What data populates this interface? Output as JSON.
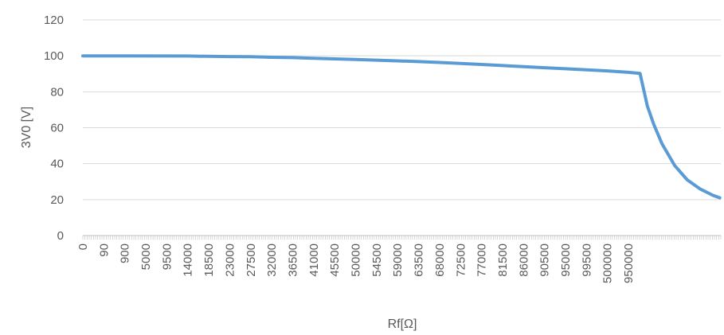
{
  "chart_data": {
    "type": "line",
    "xlabel": "Rf[Ω]",
    "ylabel": "3V0 [V]",
    "ylim": [
      0,
      120
    ],
    "yticks": [
      0,
      20,
      40,
      60,
      80,
      100,
      120
    ],
    "grid": true,
    "x_tick_labels": [
      "0",
      "90",
      "900",
      "5000",
      "9500",
      "14000",
      "18500",
      "23000",
      "27500",
      "32000",
      "36500",
      "41000",
      "45500",
      "50000",
      "54500",
      "59000",
      "63500",
      "68000",
      "72500",
      "77000",
      "81500",
      "86000",
      "90500",
      "95000",
      "99500",
      "500000",
      "950000"
    ],
    "colors": {
      "line": "#5B9BD5",
      "grid": "#D9D9D9",
      "axis": "#BFBFBF",
      "text": "#595959"
    },
    "series": [
      {
        "points": [
          [
            0,
            100.0
          ],
          [
            2,
            100.0
          ],
          [
            5,
            99.9
          ],
          [
            6,
            99.7
          ],
          [
            7,
            99.6
          ],
          [
            8,
            99.5
          ],
          [
            9,
            99.2
          ],
          [
            10,
            99.0
          ],
          [
            11,
            98.6
          ],
          [
            12,
            98.3
          ],
          [
            13,
            98.0
          ],
          [
            14,
            97.6
          ],
          [
            15,
            97.2
          ],
          [
            16,
            96.8
          ],
          [
            17,
            96.3
          ],
          [
            18,
            95.8
          ],
          [
            19,
            95.2
          ],
          [
            20,
            94.6
          ],
          [
            21,
            94.0
          ],
          [
            22,
            93.4
          ],
          [
            23,
            92.8
          ],
          [
            24,
            92.2
          ],
          [
            25,
            91.6
          ],
          [
            26,
            90.8
          ],
          [
            26.55,
            90.2
          ],
          [
            26.9,
            72
          ],
          [
            27.2,
            62
          ],
          [
            27.6,
            51
          ],
          [
            28.2,
            39
          ],
          [
            28.8,
            31
          ],
          [
            29.4,
            26
          ],
          [
            30.0,
            22.5
          ],
          [
            30.35,
            21
          ]
        ]
      }
    ]
  }
}
